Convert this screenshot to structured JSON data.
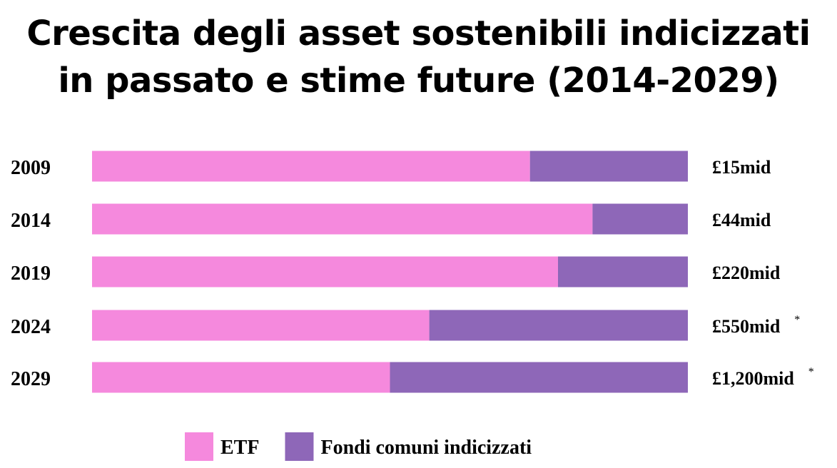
{
  "chart_data": {
    "type": "bar",
    "orientation": "horizontal",
    "stacking": "percent",
    "title_lines": [
      "Crescita degli asset sostenibili indicizzati",
      "in passato e stime future (2014-2029)"
    ],
    "categories": [
      "2009",
      "2014",
      "2019",
      "2024",
      "2029"
    ],
    "series": [
      {
        "name": "ETF",
        "color": "#f589dd",
        "values": [
          73.5,
          84,
          78.2,
          56.6,
          50
        ]
      },
      {
        "name": "Fondi comuni indicizzati",
        "color": "#8e67b8",
        "values": [
          26.5,
          16,
          21.8,
          43.4,
          50
        ]
      }
    ],
    "totals": [
      "£15mid",
      "£44mid",
      "£220mid",
      "£550mid",
      "£1,200mid"
    ],
    "total_markers": [
      "",
      "",
      "",
      "*",
      "*"
    ],
    "legend_position": "bottom",
    "grid": false
  }
}
